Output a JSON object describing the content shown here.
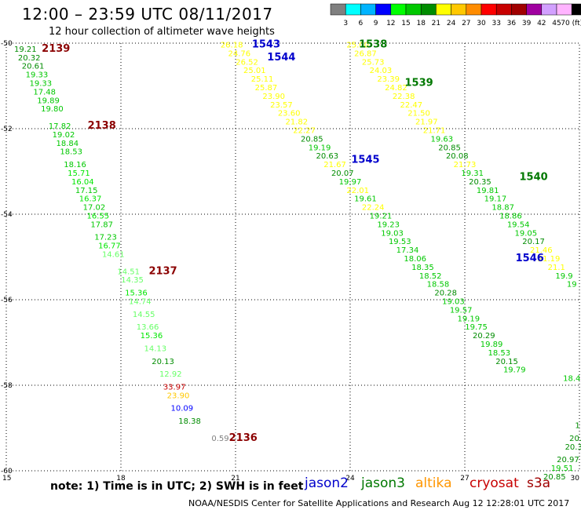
{
  "header": {
    "title": "12:00 – 23:59 UTC 08/11/2017",
    "subtitle": "12 hour collection of altimeter wave heights"
  },
  "colorbar": {
    "labels": [
      "3",
      "6",
      "9",
      "12",
      "15",
      "18",
      "21",
      "24",
      "27",
      "30",
      "33",
      "36",
      "39",
      "42",
      "45",
      "70 (ft)"
    ],
    "colors": [
      "#808080",
      "#00ffff",
      "#00b4ff",
      "#0000ff",
      "#00ff00",
      "#00c800",
      "#008c00",
      "#ffff00",
      "#ffc800",
      "#ff8c00",
      "#ff0000",
      "#c80000",
      "#a00000",
      "#a000a0",
      "#d2a0ff",
      "#ffb4ff",
      "#000000"
    ]
  },
  "axes": {
    "x_ticks": [
      "15",
      "18",
      "21",
      "24",
      "27",
      "30"
    ],
    "y_ticks": [
      "-50",
      "-52",
      "-54",
      "-56",
      "-58",
      "-60"
    ]
  },
  "footer": {
    "note": "note: 1) Time is in UTC; 2) SWH is in feet",
    "satellites": [
      {
        "name": "jason2",
        "color": "#0000cc"
      },
      {
        "name": "jason3",
        "color": "#007800"
      },
      {
        "name": "altika",
        "color": "#ff9600"
      },
      {
        "name": "cryosat",
        "color": "#c80000"
      },
      {
        "name": "s3a",
        "color": "#a00000"
      }
    ],
    "credit": "NOAA/NESDIS Center for Satellite Applications and Research     Aug 12 12:28:01 UTC 2017"
  },
  "chart_data": {
    "type": "scatter",
    "xlim": [
      15,
      30
    ],
    "ylim": [
      -60,
      -50
    ],
    "grid": true,
    "pass_labels": [
      {
        "text": "2139",
        "lon": 16.3,
        "lat": -50.2,
        "color": "#8b0000"
      },
      {
        "text": "2138",
        "lon": 17.5,
        "lat": -52.0,
        "color": "#8b0000"
      },
      {
        "text": "2137",
        "lon": 19.1,
        "lat": -55.4,
        "color": "#8b0000"
      },
      {
        "text": "2136",
        "lon": 21.2,
        "lat": -59.3,
        "color": "#8b0000"
      },
      {
        "text": "1543",
        "lon": 21.8,
        "lat": -50.1,
        "color": "#0000cc"
      },
      {
        "text": "1544",
        "lon": 22.2,
        "lat": -50.4,
        "color": "#0000cc"
      },
      {
        "text": "1538",
        "lon": 24.6,
        "lat": -50.1,
        "color": "#007800"
      },
      {
        "text": "1539",
        "lon": 25.8,
        "lat": -51.0,
        "color": "#007800"
      },
      {
        "text": "1545",
        "lon": 24.4,
        "lat": -52.8,
        "color": "#0000cc"
      },
      {
        "text": "1540",
        "lon": 28.8,
        "lat": -53.2,
        "color": "#007800"
      },
      {
        "text": "1546",
        "lon": 28.7,
        "lat": -55.1,
        "color": "#0000cc"
      }
    ],
    "points": [
      {
        "v": "19.21",
        "lon": 15.5,
        "lat": -50.2,
        "c": "#008c00"
      },
      {
        "v": "20.32",
        "lon": 15.6,
        "lat": -50.4,
        "c": "#008c00"
      },
      {
        "v": "20.61",
        "lon": 15.7,
        "lat": -50.6,
        "c": "#008c00"
      },
      {
        "v": "19.33",
        "lon": 15.8,
        "lat": -50.8,
        "c": "#00c800"
      },
      {
        "v": "19.33",
        "lon": 15.9,
        "lat": -51.0,
        "c": "#00c800"
      },
      {
        "v": "17.48",
        "lon": 16.0,
        "lat": -51.2,
        "c": "#00c800"
      },
      {
        "v": "19.89",
        "lon": 16.1,
        "lat": -51.4,
        "c": "#00c800"
      },
      {
        "v": "19.80",
        "lon": 16.2,
        "lat": -51.6,
        "c": "#00c800"
      },
      {
        "v": "17.82",
        "lon": 16.4,
        "lat": -52.0,
        "c": "#00c800"
      },
      {
        "v": "19.02",
        "lon": 16.5,
        "lat": -52.2,
        "c": "#00c800"
      },
      {
        "v": "18.84",
        "lon": 16.6,
        "lat": -52.4,
        "c": "#00c800"
      },
      {
        "v": "18.53",
        "lon": 16.7,
        "lat": -52.6,
        "c": "#00c800"
      },
      {
        "v": "18.16",
        "lon": 16.8,
        "lat": -52.9,
        "c": "#00c800"
      },
      {
        "v": "15.71",
        "lon": 16.9,
        "lat": -53.1,
        "c": "#00e600"
      },
      {
        "v": "16.04",
        "lon": 17.0,
        "lat": -53.3,
        "c": "#00e600"
      },
      {
        "v": "17.15",
        "lon": 17.1,
        "lat": -53.5,
        "c": "#00c800"
      },
      {
        "v": "16.37",
        "lon": 17.2,
        "lat": -53.7,
        "c": "#00e600"
      },
      {
        "v": "17.02",
        "lon": 17.3,
        "lat": -53.9,
        "c": "#00c800"
      },
      {
        "v": "16.55",
        "lon": 17.4,
        "lat": -54.1,
        "c": "#00e600"
      },
      {
        "v": "17.87",
        "lon": 17.5,
        "lat": -54.3,
        "c": "#00c800"
      },
      {
        "v": "17.23",
        "lon": 17.6,
        "lat": -54.6,
        "c": "#00c800"
      },
      {
        "v": "16.77",
        "lon": 17.7,
        "lat": -54.8,
        "c": "#00e600"
      },
      {
        "v": "14.61",
        "lon": 17.8,
        "lat": -55.0,
        "c": "#66ff66"
      },
      {
        "v": "14.51",
        "lon": 18.2,
        "lat": -55.4,
        "c": "#66ff66"
      },
      {
        "v": "14.35",
        "lon": 18.3,
        "lat": -55.6,
        "c": "#66ff66"
      },
      {
        "v": "15.36",
        "lon": 18.4,
        "lat": -55.9,
        "c": "#00e600"
      },
      {
        "v": "14.74",
        "lon": 18.5,
        "lat": -56.1,
        "c": "#66ff66"
      },
      {
        "v": "14.55",
        "lon": 18.6,
        "lat": -56.4,
        "c": "#66ff66"
      },
      {
        "v": "13.66",
        "lon": 18.7,
        "lat": -56.7,
        "c": "#66ff66"
      },
      {
        "v": "15.36",
        "lon": 18.8,
        "lat": -56.9,
        "c": "#00e600"
      },
      {
        "v": "14.13",
        "lon": 18.9,
        "lat": -57.2,
        "c": "#66ff66"
      },
      {
        "v": "20.13",
        "lon": 19.1,
        "lat": -57.5,
        "c": "#008c00"
      },
      {
        "v": "12.92",
        "lon": 19.3,
        "lat": -57.8,
        "c": "#66ff66"
      },
      {
        "v": "33.97",
        "lon": 19.4,
        "lat": -58.1,
        "c": "#c80000"
      },
      {
        "v": "23.90",
        "lon": 19.5,
        "lat": -58.3,
        "c": "#ffc800"
      },
      {
        "v": "10.09",
        "lon": 19.6,
        "lat": -58.6,
        "c": "#0000ff"
      },
      {
        "v": "18.38",
        "lon": 19.8,
        "lat": -58.9,
        "c": "#008c00"
      },
      {
        "v": "0.59",
        "lon": 20.6,
        "lat": -59.3,
        "c": "#808080"
      },
      {
        "v": "26.18",
        "lon": 20.9,
        "lat": -50.1,
        "c": "#ffff00"
      },
      {
        "v": "24.76",
        "lon": 21.1,
        "lat": -50.3,
        "c": "#ffff00"
      },
      {
        "v": "26.52",
        "lon": 21.3,
        "lat": -50.5,
        "c": "#ffff00"
      },
      {
        "v": "25.01",
        "lon": 21.5,
        "lat": -50.7,
        "c": "#ffff00"
      },
      {
        "v": "25.11",
        "lon": 21.7,
        "lat": -50.9,
        "c": "#ffff00"
      },
      {
        "v": "25.87",
        "lon": 21.8,
        "lat": -51.1,
        "c": "#ffff00"
      },
      {
        "v": "23.90",
        "lon": 22.0,
        "lat": -51.3,
        "c": "#ffff00"
      },
      {
        "v": "23.57",
        "lon": 22.2,
        "lat": -51.5,
        "c": "#ffff00"
      },
      {
        "v": "23.60",
        "lon": 22.4,
        "lat": -51.7,
        "c": "#ffff00"
      },
      {
        "v": "21.82",
        "lon": 22.6,
        "lat": -51.9,
        "c": "#ffff00"
      },
      {
        "v": "22.27",
        "lon": 22.8,
        "lat": -52.1,
        "c": "#ffff00"
      },
      {
        "v": "20.85",
        "lon": 23.0,
        "lat": -52.3,
        "c": "#008c00"
      },
      {
        "v": "19.19",
        "lon": 23.2,
        "lat": -52.5,
        "c": "#00c800"
      },
      {
        "v": "20.63",
        "lon": 23.4,
        "lat": -52.7,
        "c": "#008c00"
      },
      {
        "v": "21.67",
        "lon": 23.6,
        "lat": -52.9,
        "c": "#ffff00"
      },
      {
        "v": "20.07",
        "lon": 23.8,
        "lat": -53.1,
        "c": "#008c00"
      },
      {
        "v": "19.97",
        "lon": 24.0,
        "lat": -53.3,
        "c": "#00c800"
      },
      {
        "v": "22.01",
        "lon": 24.2,
        "lat": -53.5,
        "c": "#ffff00"
      },
      {
        "v": "19.61",
        "lon": 24.4,
        "lat": -53.7,
        "c": "#00c800"
      },
      {
        "v": "22.24",
        "lon": 24.6,
        "lat": -53.9,
        "c": "#ffff00"
      },
      {
        "v": "19.21",
        "lon": 24.8,
        "lat": -54.1,
        "c": "#00c800"
      },
      {
        "v": "19.23",
        "lon": 25.0,
        "lat": -54.3,
        "c": "#00c800"
      },
      {
        "v": "19.03",
        "lon": 25.1,
        "lat": -54.5,
        "c": "#00c800"
      },
      {
        "v": "19.53",
        "lon": 25.3,
        "lat": -54.7,
        "c": "#00c800"
      },
      {
        "v": "17.34",
        "lon": 25.5,
        "lat": -54.9,
        "c": "#00c800"
      },
      {
        "v": "18.06",
        "lon": 25.7,
        "lat": -55.1,
        "c": "#00c800"
      },
      {
        "v": "18.35",
        "lon": 25.9,
        "lat": -55.3,
        "c": "#00c800"
      },
      {
        "v": "18.52",
        "lon": 26.1,
        "lat": -55.5,
        "c": "#00c800"
      },
      {
        "v": "18.58",
        "lon": 26.3,
        "lat": -55.7,
        "c": "#00c800"
      },
      {
        "v": "20.28",
        "lon": 26.5,
        "lat": -55.9,
        "c": "#008c00"
      },
      {
        "v": "19.03",
        "lon": 26.7,
        "lat": -56.1,
        "c": "#00c800"
      },
      {
        "v": "19.57",
        "lon": 26.9,
        "lat": -56.3,
        "c": "#00c800"
      },
      {
        "v": "19.19",
        "lon": 27.1,
        "lat": -56.5,
        "c": "#00c800"
      },
      {
        "v": "19.75",
        "lon": 27.3,
        "lat": -56.7,
        "c": "#00c800"
      },
      {
        "v": "20.29",
        "lon": 27.5,
        "lat": -56.9,
        "c": "#008c00"
      },
      {
        "v": "19.89",
        "lon": 27.7,
        "lat": -57.1,
        "c": "#00c800"
      },
      {
        "v": "18.53",
        "lon": 27.9,
        "lat": -57.3,
        "c": "#00c800"
      },
      {
        "v": "20.15",
        "lon": 28.1,
        "lat": -57.5,
        "c": "#008c00"
      },
      {
        "v": "19.79",
        "lon": 28.3,
        "lat": -57.7,
        "c": "#00c800"
      },
      {
        "v": "25.00",
        "lon": 24.2,
        "lat": -50.1,
        "c": "#ffff00"
      },
      {
        "v": "26.87",
        "lon": 24.4,
        "lat": -50.3,
        "c": "#ffff00"
      },
      {
        "v": "25.73",
        "lon": 24.6,
        "lat": -50.5,
        "c": "#ffff00"
      },
      {
        "v": "24.03",
        "lon": 24.8,
        "lat": -50.7,
        "c": "#ffff00"
      },
      {
        "v": "23.39",
        "lon": 25.0,
        "lat": -50.9,
        "c": "#ffff00"
      },
      {
        "v": "24.82",
        "lon": 25.2,
        "lat": -51.1,
        "c": "#ffff00"
      },
      {
        "v": "22.38",
        "lon": 25.4,
        "lat": -51.3,
        "c": "#ffff00"
      },
      {
        "v": "22.47",
        "lon": 25.6,
        "lat": -51.5,
        "c": "#ffff00"
      },
      {
        "v": "21.50",
        "lon": 25.8,
        "lat": -51.7,
        "c": "#ffff00"
      },
      {
        "v": "21.97",
        "lon": 26.0,
        "lat": -51.9,
        "c": "#ffff00"
      },
      {
        "v": "21.71",
        "lon": 26.2,
        "lat": -52.1,
        "c": "#ffff00"
      },
      {
        "v": "19.63",
        "lon": 26.4,
        "lat": -52.3,
        "c": "#00c800"
      },
      {
        "v": "20.85",
        "lon": 26.6,
        "lat": -52.5,
        "c": "#008c00"
      },
      {
        "v": "20.08",
        "lon": 26.8,
        "lat": -52.7,
        "c": "#008c00"
      },
      {
        "v": "21.73",
        "lon": 27.0,
        "lat": -52.9,
        "c": "#ffff00"
      },
      {
        "v": "19.31",
        "lon": 27.2,
        "lat": -53.1,
        "c": "#00c800"
      },
      {
        "v": "20.35",
        "lon": 27.4,
        "lat": -53.3,
        "c": "#008c00"
      },
      {
        "v": "19.81",
        "lon": 27.6,
        "lat": -53.5,
        "c": "#00c800"
      },
      {
        "v": "19.17",
        "lon": 27.8,
        "lat": -53.7,
        "c": "#00c800"
      },
      {
        "v": "18.87",
        "lon": 28.0,
        "lat": -53.9,
        "c": "#00c800"
      },
      {
        "v": "18.86",
        "lon": 28.2,
        "lat": -54.1,
        "c": "#00c800"
      },
      {
        "v": "19.54",
        "lon": 28.4,
        "lat": -54.3,
        "c": "#00c800"
      },
      {
        "v": "19.05",
        "lon": 28.6,
        "lat": -54.5,
        "c": "#00c800"
      },
      {
        "v": "20.17",
        "lon": 28.8,
        "lat": -54.7,
        "c": "#008c00"
      },
      {
        "v": "21.46",
        "lon": 29.0,
        "lat": -54.9,
        "c": "#ffff00"
      },
      {
        "v": "21.19",
        "lon": 29.2,
        "lat": -55.1,
        "c": "#ffff00"
      },
      {
        "v": "21.1",
        "lon": 29.4,
        "lat": -55.3,
        "c": "#ffff00"
      },
      {
        "v": "19.9",
        "lon": 29.6,
        "lat": -55.5,
        "c": "#00c800"
      },
      {
        "v": "19",
        "lon": 29.8,
        "lat": -55.7,
        "c": "#00c800"
      },
      {
        "v": "18.4",
        "lon": 29.8,
        "lat": -57.9,
        "c": "#00c800"
      },
      {
        "v": "1",
        "lon": 29.95,
        "lat": -59.0,
        "c": "#008c00"
      },
      {
        "v": "20.",
        "lon": 29.9,
        "lat": -59.3,
        "c": "#008c00"
      },
      {
        "v": "20.3",
        "lon": 29.85,
        "lat": -59.5,
        "c": "#008c00"
      },
      {
        "v": "20.97",
        "lon": 29.7,
        "lat": -59.8,
        "c": "#008c00"
      },
      {
        "v": "19.51",
        "lon": 29.55,
        "lat": -60.0,
        "c": "#00c800"
      },
      {
        "v": "20.85",
        "lon": 29.35,
        "lat": -60.2,
        "c": "#008c00"
      }
    ]
  }
}
